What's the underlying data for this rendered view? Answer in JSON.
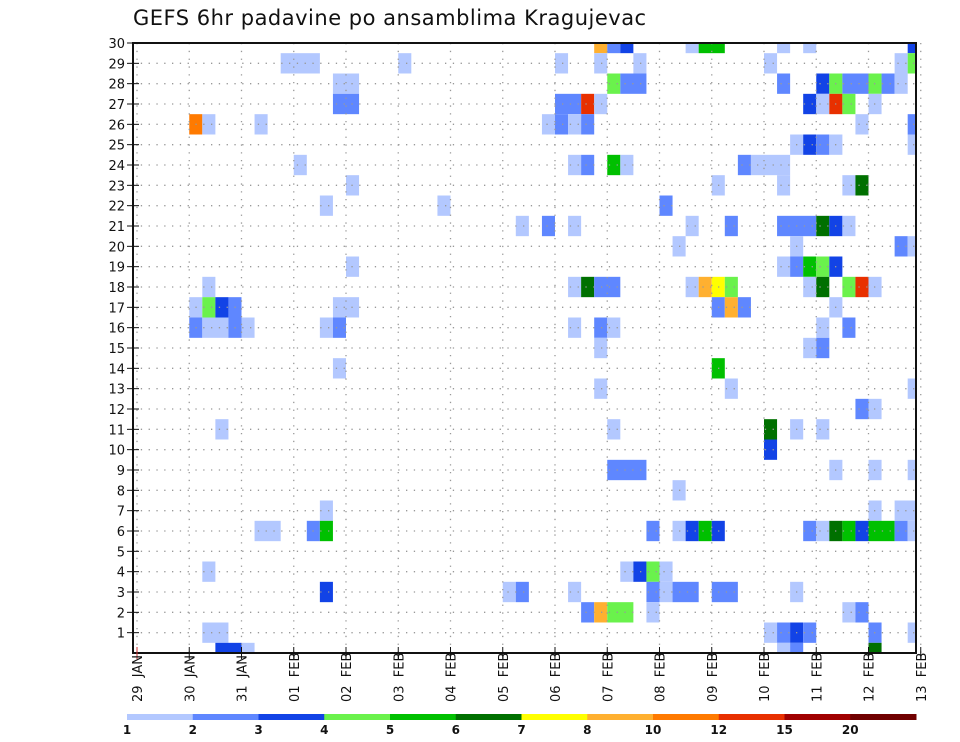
{
  "chart_data": {
    "type": "heatmap",
    "title": "GEFS 6hr padavine po ansamblima Kragujevac",
    "xlabel": "",
    "ylabel": "",
    "x_ticks": [
      "29 JAN",
      "30 JAN",
      "31 JAN",
      "01 FEB",
      "02 FEB",
      "03 FEB",
      "04 FEB",
      "05 FEB",
      "06 FEB",
      "07 FEB",
      "08 FEB",
      "09 FEB",
      "10 FEB",
      "11 FEB",
      "12 FEB",
      "13 FEB"
    ],
    "y_ticks": [
      "1",
      "2",
      "3",
      "4",
      "5",
      "6",
      "7",
      "8",
      "9",
      "10",
      "11",
      "12",
      "13",
      "14",
      "15",
      "16",
      "17",
      "18",
      "19",
      "20",
      "21",
      "22",
      "23",
      "24",
      "25",
      "26",
      "27",
      "28",
      "29",
      "30"
    ],
    "ylim": [
      0,
      30
    ],
    "x_step_hours": 6,
    "x_steps_total": 60,
    "grid": true,
    "legend": {
      "placement": "bottom",
      "labels": [
        "1",
        "2",
        "3",
        "4",
        "5",
        "6",
        "7",
        "8",
        "10",
        "12",
        "15",
        "20"
      ],
      "colors": [
        "#b3c8ff",
        "#5f87ff",
        "#1243e6",
        "#6af24c",
        "#00c000",
        "#007000",
        "#ffff00",
        "#ffb030",
        "#ff7a00",
        "#e83000",
        "#a00000",
        "#700000"
      ]
    },
    "cells_note": "each cell = [member, first 6h step from 29 JAN 00Z, last step, color class 0-11]",
    "cells": [
      [
        30,
        35,
        35,
        7
      ],
      [
        30,
        36,
        36,
        1
      ],
      [
        30,
        37,
        37,
        2
      ],
      [
        30,
        42,
        42,
        0
      ],
      [
        30,
        43,
        44,
        4
      ],
      [
        30,
        49,
        49,
        0
      ],
      [
        30,
        51,
        51,
        0
      ],
      [
        30,
        59,
        59,
        2
      ],
      [
        29,
        11,
        13,
        0
      ],
      [
        29,
        20,
        20,
        0
      ],
      [
        29,
        32,
        32,
        0
      ],
      [
        29,
        35,
        35,
        0
      ],
      [
        29,
        38,
        38,
        0
      ],
      [
        29,
        48,
        48,
        0
      ],
      [
        29,
        58,
        58,
        0
      ],
      [
        29,
        59,
        59,
        3
      ],
      [
        28,
        15,
        16,
        0
      ],
      [
        28,
        36,
        36,
        3
      ],
      [
        28,
        37,
        38,
        1
      ],
      [
        28,
        49,
        49,
        1
      ],
      [
        28,
        52,
        52,
        2
      ],
      [
        28,
        53,
        53,
        3
      ],
      [
        28,
        54,
        55,
        1
      ],
      [
        28,
        56,
        56,
        3
      ],
      [
        28,
        57,
        57,
        1
      ],
      [
        28,
        58,
        58,
        0
      ],
      [
        27,
        15,
        16,
        1
      ],
      [
        27,
        32,
        33,
        1
      ],
      [
        27,
        34,
        34,
        9
      ],
      [
        27,
        35,
        35,
        0
      ],
      [
        27,
        51,
        51,
        2
      ],
      [
        27,
        52,
        52,
        0
      ],
      [
        27,
        53,
        53,
        9
      ],
      [
        27,
        54,
        54,
        3
      ],
      [
        27,
        56,
        56,
        0
      ],
      [
        26,
        4,
        4,
        8
      ],
      [
        26,
        5,
        5,
        0
      ],
      [
        26,
        9,
        9,
        0
      ],
      [
        26,
        31,
        31,
        0
      ],
      [
        26,
        32,
        32,
        1
      ],
      [
        26,
        33,
        33,
        0
      ],
      [
        26,
        34,
        34,
        1
      ],
      [
        26,
        55,
        55,
        0
      ],
      [
        26,
        59,
        59,
        1
      ],
      [
        25,
        50,
        50,
        0
      ],
      [
        25,
        51,
        51,
        2
      ],
      [
        25,
        52,
        52,
        1
      ],
      [
        25,
        53,
        53,
        0
      ],
      [
        25,
        59,
        59,
        0
      ],
      [
        24,
        12,
        12,
        0
      ],
      [
        24,
        33,
        33,
        0
      ],
      [
        24,
        34,
        34,
        1
      ],
      [
        24,
        36,
        36,
        4
      ],
      [
        24,
        37,
        37,
        0
      ],
      [
        24,
        46,
        46,
        1
      ],
      [
        24,
        47,
        49,
        0
      ],
      [
        23,
        16,
        16,
        0
      ],
      [
        23,
        44,
        44,
        0
      ],
      [
        23,
        49,
        49,
        0
      ],
      [
        23,
        54,
        54,
        0
      ],
      [
        23,
        55,
        55,
        5
      ],
      [
        22,
        14,
        14,
        0
      ],
      [
        22,
        23,
        23,
        0
      ],
      [
        22,
        40,
        40,
        1
      ],
      [
        21,
        29,
        29,
        0
      ],
      [
        21,
        31,
        31,
        1
      ],
      [
        21,
        33,
        33,
        0
      ],
      [
        21,
        42,
        42,
        0
      ],
      [
        21,
        45,
        45,
        1
      ],
      [
        21,
        49,
        51,
        1
      ],
      [
        21,
        52,
        52,
        5
      ],
      [
        21,
        53,
        53,
        2
      ],
      [
        21,
        54,
        54,
        0
      ],
      [
        20,
        41,
        41,
        0
      ],
      [
        20,
        50,
        50,
        0
      ],
      [
        20,
        58,
        58,
        1
      ],
      [
        20,
        59,
        59,
        0
      ],
      [
        19,
        16,
        16,
        0
      ],
      [
        19,
        49,
        49,
        0
      ],
      [
        19,
        50,
        50,
        1
      ],
      [
        19,
        51,
        51,
        4
      ],
      [
        19,
        52,
        52,
        3
      ],
      [
        19,
        53,
        53,
        2
      ],
      [
        18,
        5,
        5,
        0
      ],
      [
        18,
        33,
        33,
        0
      ],
      [
        18,
        34,
        34,
        5
      ],
      [
        18,
        35,
        36,
        1
      ],
      [
        18,
        42,
        42,
        0
      ],
      [
        18,
        43,
        43,
        7
      ],
      [
        18,
        44,
        44,
        6
      ],
      [
        18,
        45,
        45,
        3
      ],
      [
        18,
        51,
        51,
        0
      ],
      [
        18,
        52,
        52,
        5
      ],
      [
        18,
        54,
        54,
        3
      ],
      [
        18,
        55,
        55,
        9
      ],
      [
        18,
        56,
        56,
        0
      ],
      [
        17,
        4,
        4,
        0
      ],
      [
        17,
        5,
        5,
        3
      ],
      [
        17,
        6,
        6,
        2
      ],
      [
        17,
        7,
        7,
        1
      ],
      [
        17,
        15,
        16,
        0
      ],
      [
        17,
        44,
        44,
        1
      ],
      [
        17,
        45,
        45,
        7
      ],
      [
        17,
        46,
        46,
        1
      ],
      [
        17,
        53,
        53,
        0
      ],
      [
        16,
        4,
        4,
        1
      ],
      [
        16,
        5,
        6,
        0
      ],
      [
        16,
        7,
        7,
        1
      ],
      [
        16,
        8,
        8,
        0
      ],
      [
        16,
        14,
        14,
        0
      ],
      [
        16,
        15,
        15,
        1
      ],
      [
        16,
        33,
        33,
        0
      ],
      [
        16,
        35,
        35,
        1
      ],
      [
        16,
        36,
        36,
        0
      ],
      [
        16,
        52,
        52,
        0
      ],
      [
        16,
        54,
        54,
        1
      ],
      [
        15,
        35,
        35,
        0
      ],
      [
        15,
        51,
        51,
        0
      ],
      [
        15,
        52,
        52,
        1
      ],
      [
        14,
        15,
        15,
        0
      ],
      [
        14,
        44,
        44,
        4
      ],
      [
        13,
        35,
        35,
        0
      ],
      [
        13,
        45,
        45,
        0
      ],
      [
        13,
        59,
        59,
        0
      ],
      [
        12,
        55,
        55,
        1
      ],
      [
        12,
        56,
        56,
        0
      ],
      [
        11,
        6,
        6,
        0
      ],
      [
        11,
        36,
        36,
        0
      ],
      [
        11,
        48,
        48,
        5
      ],
      [
        11,
        50,
        50,
        0
      ],
      [
        11,
        52,
        52,
        0
      ],
      [
        10,
        48,
        48,
        2
      ],
      [
        9,
        36,
        38,
        1
      ],
      [
        9,
        53,
        53,
        0
      ],
      [
        9,
        56,
        56,
        0
      ],
      [
        9,
        59,
        59,
        0
      ],
      [
        8,
        41,
        41,
        0
      ],
      [
        7,
        14,
        14,
        0
      ],
      [
        7,
        56,
        56,
        0
      ],
      [
        7,
        58,
        59,
        0
      ],
      [
        6,
        9,
        10,
        0
      ],
      [
        6,
        13,
        13,
        1
      ],
      [
        6,
        14,
        14,
        4
      ],
      [
        6,
        39,
        39,
        1
      ],
      [
        6,
        41,
        41,
        0
      ],
      [
        6,
        42,
        42,
        2
      ],
      [
        6,
        43,
        43,
        4
      ],
      [
        6,
        44,
        44,
        2
      ],
      [
        6,
        51,
        51,
        1
      ],
      [
        6,
        52,
        52,
        0
      ],
      [
        6,
        53,
        53,
        5
      ],
      [
        6,
        54,
        54,
        4
      ],
      [
        6,
        55,
        55,
        2
      ],
      [
        6,
        56,
        57,
        4
      ],
      [
        6,
        58,
        58,
        1
      ],
      [
        6,
        59,
        59,
        0
      ],
      [
        4,
        5,
        5,
        0
      ],
      [
        4,
        37,
        37,
        0
      ],
      [
        4,
        38,
        38,
        2
      ],
      [
        4,
        39,
        39,
        3
      ],
      [
        4,
        40,
        40,
        0
      ],
      [
        3,
        14,
        14,
        2
      ],
      [
        3,
        28,
        28,
        0
      ],
      [
        3,
        29,
        29,
        1
      ],
      [
        3,
        33,
        33,
        0
      ],
      [
        3,
        39,
        39,
        1
      ],
      [
        3,
        40,
        40,
        0
      ],
      [
        3,
        41,
        42,
        1
      ],
      [
        3,
        44,
        45,
        1
      ],
      [
        3,
        50,
        50,
        0
      ],
      [
        2,
        34,
        34,
        1
      ],
      [
        2,
        35,
        35,
        7
      ],
      [
        2,
        36,
        37,
        3
      ],
      [
        2,
        39,
        39,
        0
      ],
      [
        2,
        54,
        54,
        0
      ],
      [
        2,
        55,
        55,
        1
      ],
      [
        1,
        5,
        6,
        0
      ],
      [
        1,
        48,
        48,
        0
      ],
      [
        1,
        49,
        49,
        1
      ],
      [
        1,
        50,
        50,
        2
      ],
      [
        1,
        51,
        51,
        1
      ],
      [
        1,
        56,
        56,
        1
      ],
      [
        1,
        59,
        59,
        0
      ],
      [
        0,
        6,
        7,
        2
      ],
      [
        0,
        8,
        8,
        0
      ],
      [
        0,
        49,
        49,
        0
      ],
      [
        0,
        50,
        50,
        1
      ],
      [
        0,
        56,
        56,
        5
      ]
    ]
  }
}
